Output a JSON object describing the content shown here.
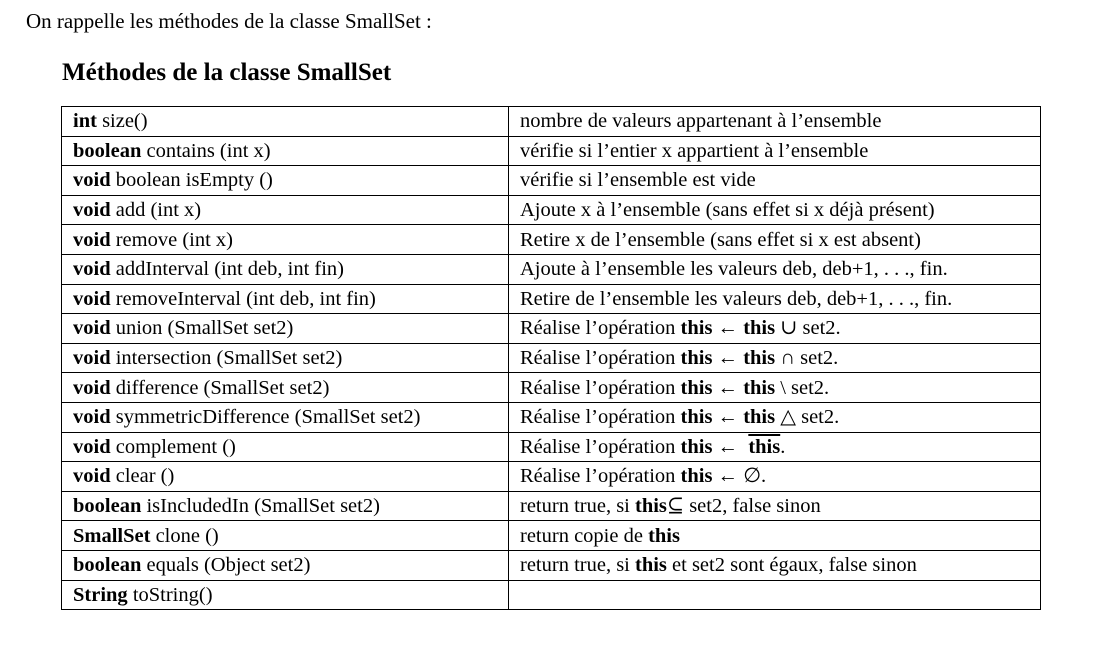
{
  "intro": "On rappelle les méthodes de la classe SmallSet :",
  "heading": "Méthodes de la classe SmallSet",
  "rows": [
    {
      "sig_kw": "int",
      "sig_rest": " size()",
      "desc": [
        {
          "t": "nombre de valeurs appartenant à l’ensemble"
        }
      ]
    },
    {
      "sig_kw": "boolean",
      "sig_rest": " contains (int x)",
      "desc": [
        {
          "t": "vérifie si l’entier x appartient à l’ensemble"
        }
      ]
    },
    {
      "sig_kw": "void",
      "sig_rest": " boolean isEmpty ()",
      "desc": [
        {
          "t": "vérifie si l’ensemble est vide"
        }
      ]
    },
    {
      "sig_kw": "void",
      "sig_rest": " add (int x)",
      "desc": [
        {
          "t": "Ajoute x à l’ensemble (sans effet si x déjà présent)"
        }
      ]
    },
    {
      "sig_kw": "void",
      "sig_rest": " remove (int x)",
      "desc": [
        {
          "t": "Retire x de l’ensemble (sans effet si x est absent)"
        }
      ]
    },
    {
      "sig_kw": "void",
      "sig_rest": " addInterval (int deb, int fin)",
      "desc": [
        {
          "t": "Ajoute à l’ensemble les valeurs deb, deb+1, . . ., fin."
        }
      ]
    },
    {
      "sig_kw": "void",
      "sig_rest": " removeInterval (int deb, int fin)",
      "desc": [
        {
          "t": "Retire de l’ensemble les valeurs deb, deb+1, . . ., fin."
        }
      ]
    },
    {
      "sig_kw": "void",
      "sig_rest": " union (SmallSet set2)",
      "desc": [
        {
          "t": "Réalise l’opération "
        },
        {
          "t": "this",
          "b": true
        },
        {
          "t": " ← "
        },
        {
          "t": "this",
          "b": true
        },
        {
          "t": " ∪ set2."
        }
      ]
    },
    {
      "sig_kw": "void",
      "sig_rest": " intersection (SmallSet set2)",
      "desc": [
        {
          "t": "Réalise l’opération "
        },
        {
          "t": "this",
          "b": true
        },
        {
          "t": " ← "
        },
        {
          "t": "this",
          "b": true
        },
        {
          "t": " ∩ set2."
        }
      ]
    },
    {
      "sig_kw": "void",
      "sig_rest": " difference (SmallSet set2)",
      "desc": [
        {
          "t": "Réalise l’opération "
        },
        {
          "t": "this",
          "b": true
        },
        {
          "t": " ← "
        },
        {
          "t": "this",
          "b": true
        },
        {
          "t": " \\ set2."
        }
      ]
    },
    {
      "sig_kw": "void",
      "sig_rest": " symmetricDifference (SmallSet set2)",
      "desc": [
        {
          "t": "Réalise l’opération "
        },
        {
          "t": "this",
          "b": true
        },
        {
          "t": " ← "
        },
        {
          "t": "this",
          "b": true
        },
        {
          "t": " △ set2."
        }
      ]
    },
    {
      "sig_kw": "void",
      "sig_rest": " complement ()",
      "desc": [
        {
          "t": "Réalise l’opération "
        },
        {
          "t": "this",
          "b": true
        },
        {
          "t": " ←  "
        },
        {
          "t": "this",
          "b": true,
          "o": true
        },
        {
          "t": "."
        }
      ]
    },
    {
      "sig_kw": "void",
      "sig_rest": " clear ()",
      "desc": [
        {
          "t": "Réalise l’opération "
        },
        {
          "t": "this",
          "b": true
        },
        {
          "t": " ← ∅."
        }
      ]
    },
    {
      "sig_kw": "boolean",
      "sig_rest": " isIncludedIn (SmallSet set2)",
      "desc": [
        {
          "t": "return true, si "
        },
        {
          "t": "this",
          "b": true
        },
        {
          "t": "⊆ set2, false sinon"
        }
      ]
    },
    {
      "sig_kw": "SmallSet",
      "sig_rest": " clone ()",
      "desc": [
        {
          "t": "return copie de "
        },
        {
          "t": "this",
          "b": true
        }
      ]
    },
    {
      "sig_kw": "boolean",
      "sig_rest": " equals (Object set2)",
      "desc": [
        {
          "t": "return true, si "
        },
        {
          "t": "this",
          "b": true
        },
        {
          "t": " et set2 sont égaux, false sinon"
        }
      ]
    },
    {
      "sig_kw": "String",
      "sig_rest": " toString()",
      "desc": []
    }
  ]
}
